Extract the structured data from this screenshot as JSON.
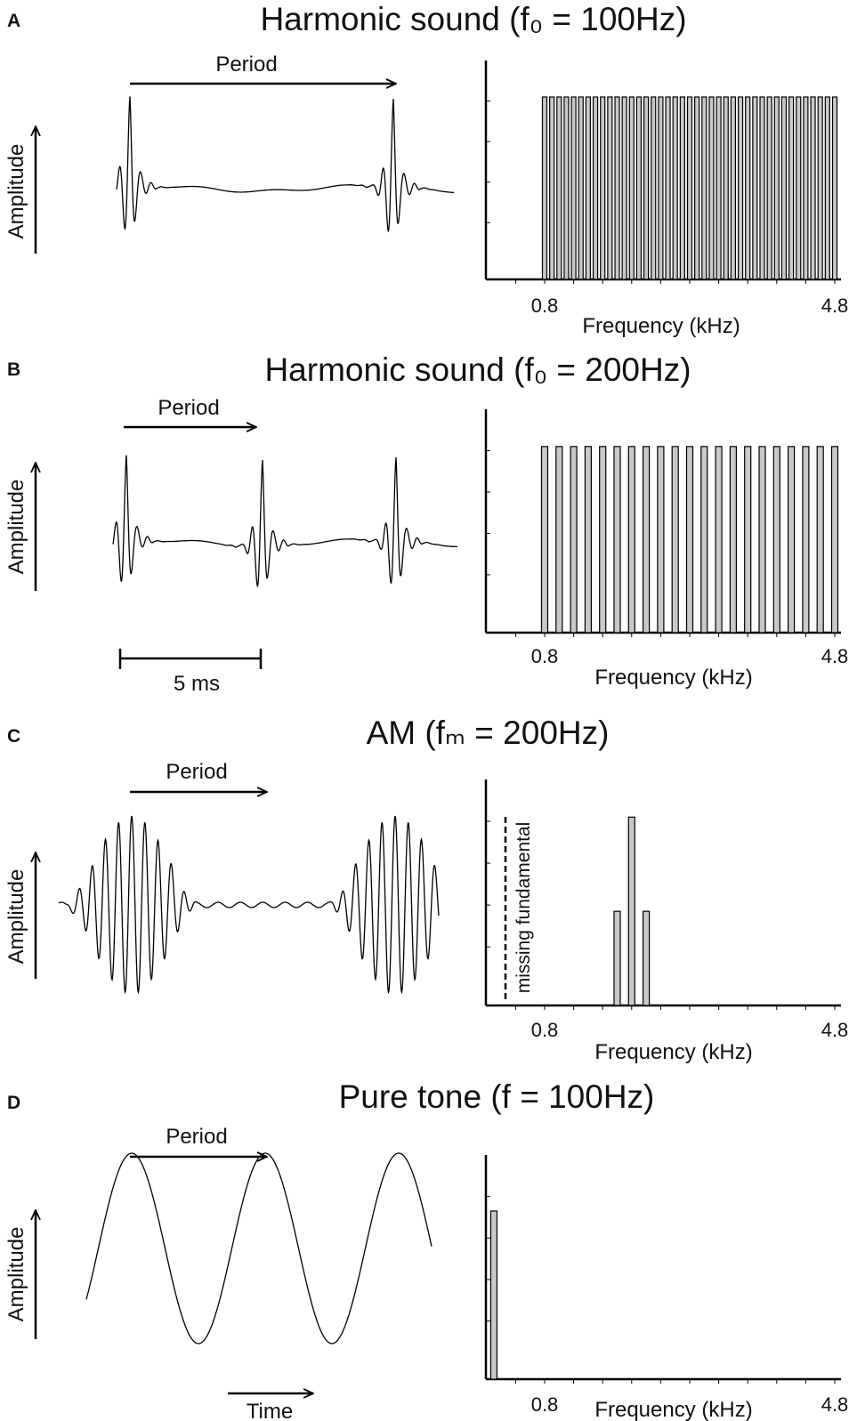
{
  "panels": [
    {
      "letter": "A",
      "title": "Harmonic sound (f₀ = 100Hz)",
      "period_label": "Period",
      "amplitude_label": "Amplitude",
      "chart_data": {
        "type": "bar",
        "xlabel": "Frequency (kHz)",
        "x_ticks": [
          "0.8",
          "4.8"
        ],
        "xlim": [
          0,
          4.8
        ],
        "ylim": [
          0,
          1.2
        ],
        "x": [
          0.8,
          0.9,
          1.0,
          1.1,
          1.2,
          1.3,
          1.4,
          1.5,
          1.6,
          1.7,
          1.8,
          1.9,
          2.0,
          2.1,
          2.2,
          2.3,
          2.4,
          2.5,
          2.6,
          2.7,
          2.8,
          2.9,
          3.0,
          3.1,
          3.2,
          3.3,
          3.4,
          3.5,
          3.6,
          3.7,
          3.8,
          3.9,
          4.0,
          4.1,
          4.2,
          4.3,
          4.4,
          4.5,
          4.6,
          4.7,
          4.8
        ],
        "values": [
          1,
          1,
          1,
          1,
          1,
          1,
          1,
          1,
          1,
          1,
          1,
          1,
          1,
          1,
          1,
          1,
          1,
          1,
          1,
          1,
          1,
          1,
          1,
          1,
          1,
          1,
          1,
          1,
          1,
          1,
          1,
          1,
          1,
          1,
          1,
          1,
          1,
          1,
          1,
          1,
          1
        ]
      }
    },
    {
      "letter": "B",
      "title": "Harmonic sound (f₀ = 200Hz)",
      "period_label": "Period",
      "amplitude_label": "Amplitude",
      "scale_label": "5 ms",
      "chart_data": {
        "type": "bar",
        "xlabel": "Frequency (kHz)",
        "x_ticks": [
          "0.8",
          "4.8"
        ],
        "xlim": [
          0,
          4.8
        ],
        "ylim": [
          0,
          1.2
        ],
        "x": [
          0.8,
          1.0,
          1.2,
          1.4,
          1.6,
          1.8,
          2.0,
          2.2,
          2.4,
          2.6,
          2.8,
          3.0,
          3.2,
          3.4,
          3.6,
          3.8,
          4.0,
          4.2,
          4.4,
          4.6,
          4.8
        ],
        "values": [
          1,
          1,
          1,
          1,
          1,
          1,
          1,
          1,
          1,
          1,
          1,
          1,
          1,
          1,
          1,
          1,
          1,
          1,
          1,
          1,
          1
        ]
      }
    },
    {
      "letter": "C",
      "title": "AM (fₘ = 200Hz)",
      "period_label": "Period",
      "amplitude_label": "Amplitude",
      "chart_data": {
        "type": "bar",
        "xlabel": "Frequency (kHz)",
        "x_ticks": [
          "0.8",
          "4.8"
        ],
        "xlim": [
          0,
          4.8
        ],
        "ylim": [
          0,
          1.2
        ],
        "x": [
          1.8,
          2.0,
          2.2
        ],
        "values": [
          0.5,
          1.0,
          0.5
        ],
        "annotation": "missing fundamental",
        "annotation_x": 0.2
      }
    },
    {
      "letter": "D",
      "title": "Pure tone (f  = 100Hz)",
      "period_label": "Period",
      "amplitude_label": "Amplitude",
      "time_label": "Time",
      "chart_data": {
        "type": "bar",
        "xlabel": "Frequency (kHz)",
        "x_ticks": [
          "0.8",
          "4.8"
        ],
        "xlim": [
          0,
          4.8
        ],
        "ylim": [
          0,
          1.2
        ],
        "x": [
          0.1
        ],
        "values": [
          0.9
        ]
      }
    }
  ]
}
